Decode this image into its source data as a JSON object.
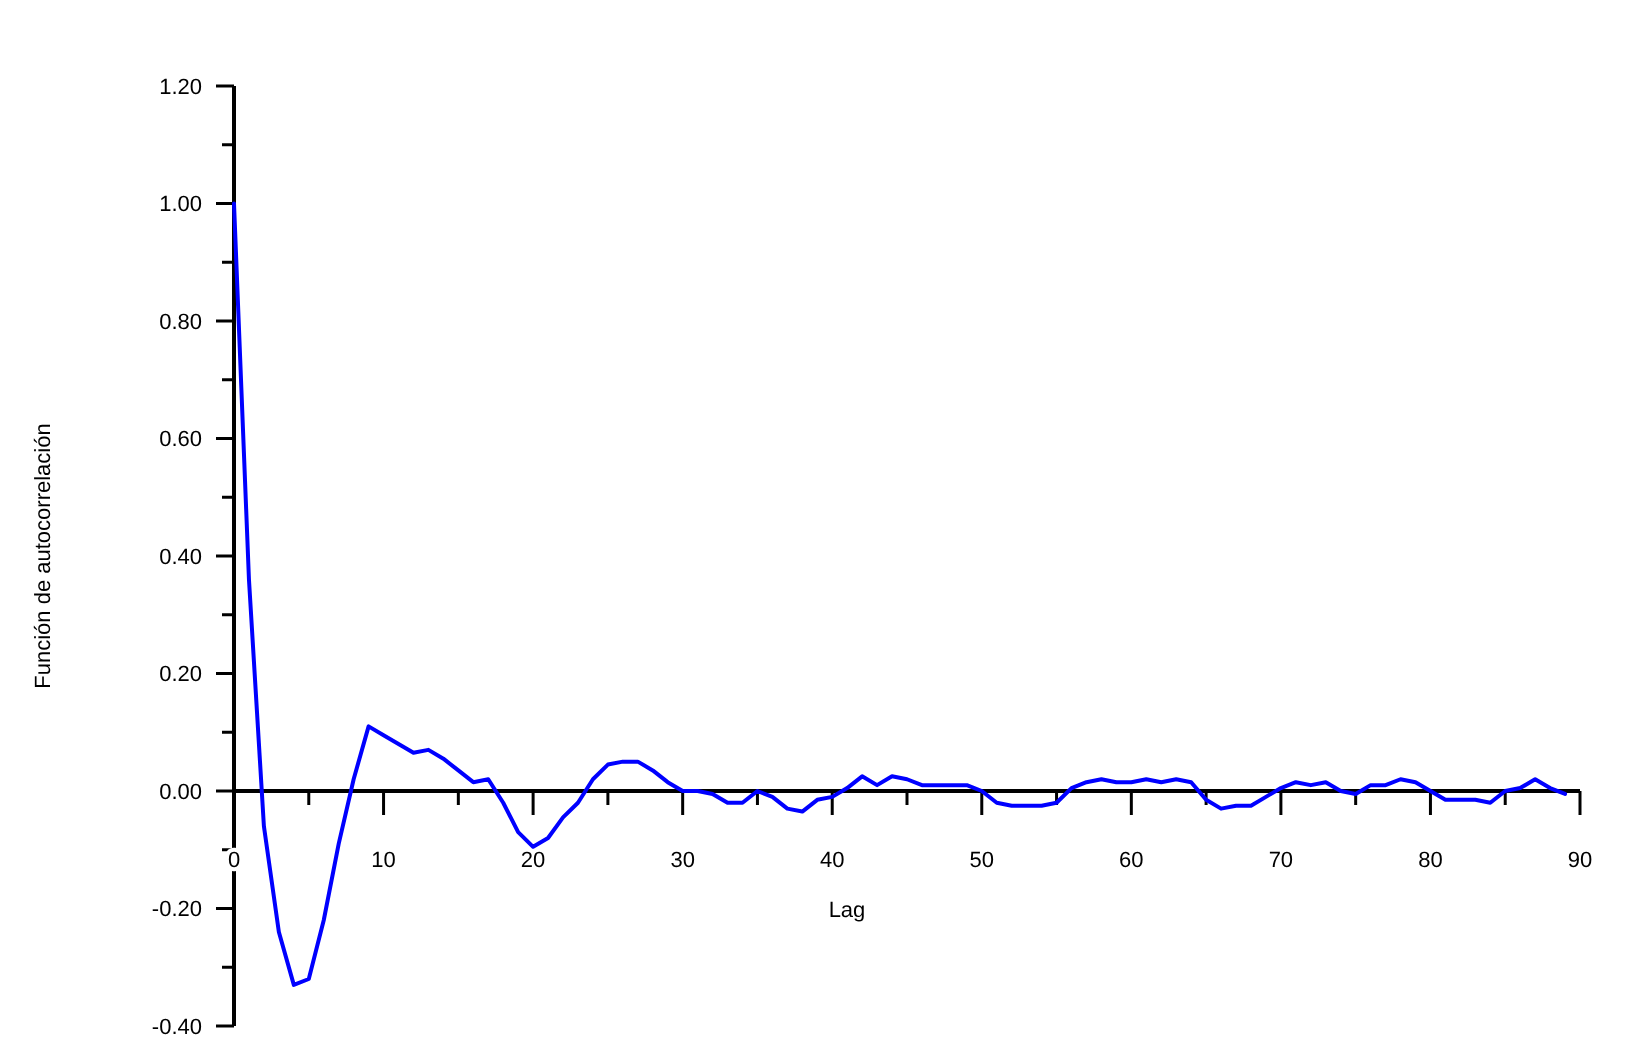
{
  "chart_data": {
    "type": "line",
    "xlabel": "Lag",
    "ylabel": "Función de autocorrelación",
    "x": [
      0,
      1,
      2,
      3,
      4,
      5,
      6,
      7,
      8,
      9,
      10,
      11,
      12,
      13,
      14,
      15,
      16,
      17,
      18,
      19,
      20,
      21,
      22,
      23,
      24,
      25,
      26,
      27,
      28,
      29,
      30,
      31,
      32,
      33,
      34,
      35,
      36,
      37,
      38,
      39,
      40,
      41,
      42,
      43,
      44,
      45,
      46,
      47,
      48,
      49,
      50,
      51,
      52,
      53,
      54,
      55,
      56,
      57,
      58,
      59,
      60,
      61,
      62,
      63,
      64,
      65,
      66,
      67,
      68,
      69,
      70,
      71,
      72,
      73,
      74,
      75,
      76,
      77,
      78,
      79,
      80,
      81,
      82,
      83,
      84,
      85,
      86,
      87,
      88,
      89
    ],
    "series": [
      {
        "color": "#0000ff",
        "values": [
          1.0,
          0.36,
          -0.06,
          -0.24,
          -0.33,
          -0.32,
          -0.22,
          -0.09,
          0.02,
          0.11,
          0.095,
          0.08,
          0.065,
          0.07,
          0.055,
          0.035,
          0.015,
          0.02,
          -0.02,
          -0.07,
          -0.095,
          -0.08,
          -0.045,
          -0.02,
          0.02,
          0.045,
          0.05,
          0.05,
          0.035,
          0.015,
          0.0,
          0.0,
          -0.005,
          -0.02,
          -0.02,
          0.0,
          -0.01,
          -0.03,
          -0.035,
          -0.015,
          -0.01,
          0.005,
          0.025,
          0.01,
          0.025,
          0.02,
          0.01,
          0.01,
          0.01,
          0.01,
          0.0,
          -0.02,
          -0.025,
          -0.025,
          -0.025,
          -0.02,
          0.005,
          0.015,
          0.02,
          0.015,
          0.015,
          0.02,
          0.015,
          0.02,
          0.015,
          -0.015,
          -0.03,
          -0.025,
          -0.025,
          -0.01,
          0.005,
          0.015,
          0.01,
          0.015,
          0.0,
          -0.005,
          0.01,
          0.01,
          0.02,
          0.015,
          0.0,
          -0.015,
          -0.015,
          -0.015,
          -0.02,
          0.0,
          0.005,
          0.02,
          0.005,
          -0.005
        ]
      }
    ],
    "xlim": [
      0,
      90
    ],
    "xticks": [
      0,
      {
        "value": 5,
        "label": null
      },
      10,
      {
        "value": 15,
        "label": null
      },
      20,
      {
        "value": 25,
        "label": null
      },
      30,
      {
        "value": 35,
        "label": null
      },
      40,
      {
        "value": 45,
        "label": null
      },
      50,
      {
        "value": 55,
        "label": null
      },
      60,
      {
        "value": 65,
        "label": null
      },
      70,
      {
        "value": 75,
        "label": null
      },
      80,
      {
        "value": 85,
        "label": null
      },
      90
    ],
    "ylim": [
      -0.4,
      1.2
    ],
    "yticks": [
      {
        "value": -0.4,
        "label": "-0.40"
      },
      {
        "value": -0.3,
        "label": null
      },
      {
        "value": -0.2,
        "label": "-0.20"
      },
      {
        "value": -0.1,
        "label": null
      },
      {
        "value": 0,
        "label": "0.00"
      },
      {
        "value": 0.1,
        "label": null
      },
      {
        "value": 0.2,
        "label": "0.20"
      },
      {
        "value": 0.3,
        "label": null
      },
      {
        "value": 0.4,
        "label": "0.40"
      },
      {
        "value": 0.5,
        "label": null
      },
      {
        "value": 0.6,
        "label": "0.60"
      },
      {
        "value": 0.7,
        "label": null
      },
      {
        "value": 0.8,
        "label": "0.80"
      },
      {
        "value": 0.9,
        "label": null
      },
      {
        "value": 1.0,
        "label": "1.00"
      },
      {
        "value": 1.1,
        "label": null
      },
      {
        "value": 1.2,
        "label": "1.20"
      }
    ],
    "marker": "none",
    "line_style": "solid"
  }
}
